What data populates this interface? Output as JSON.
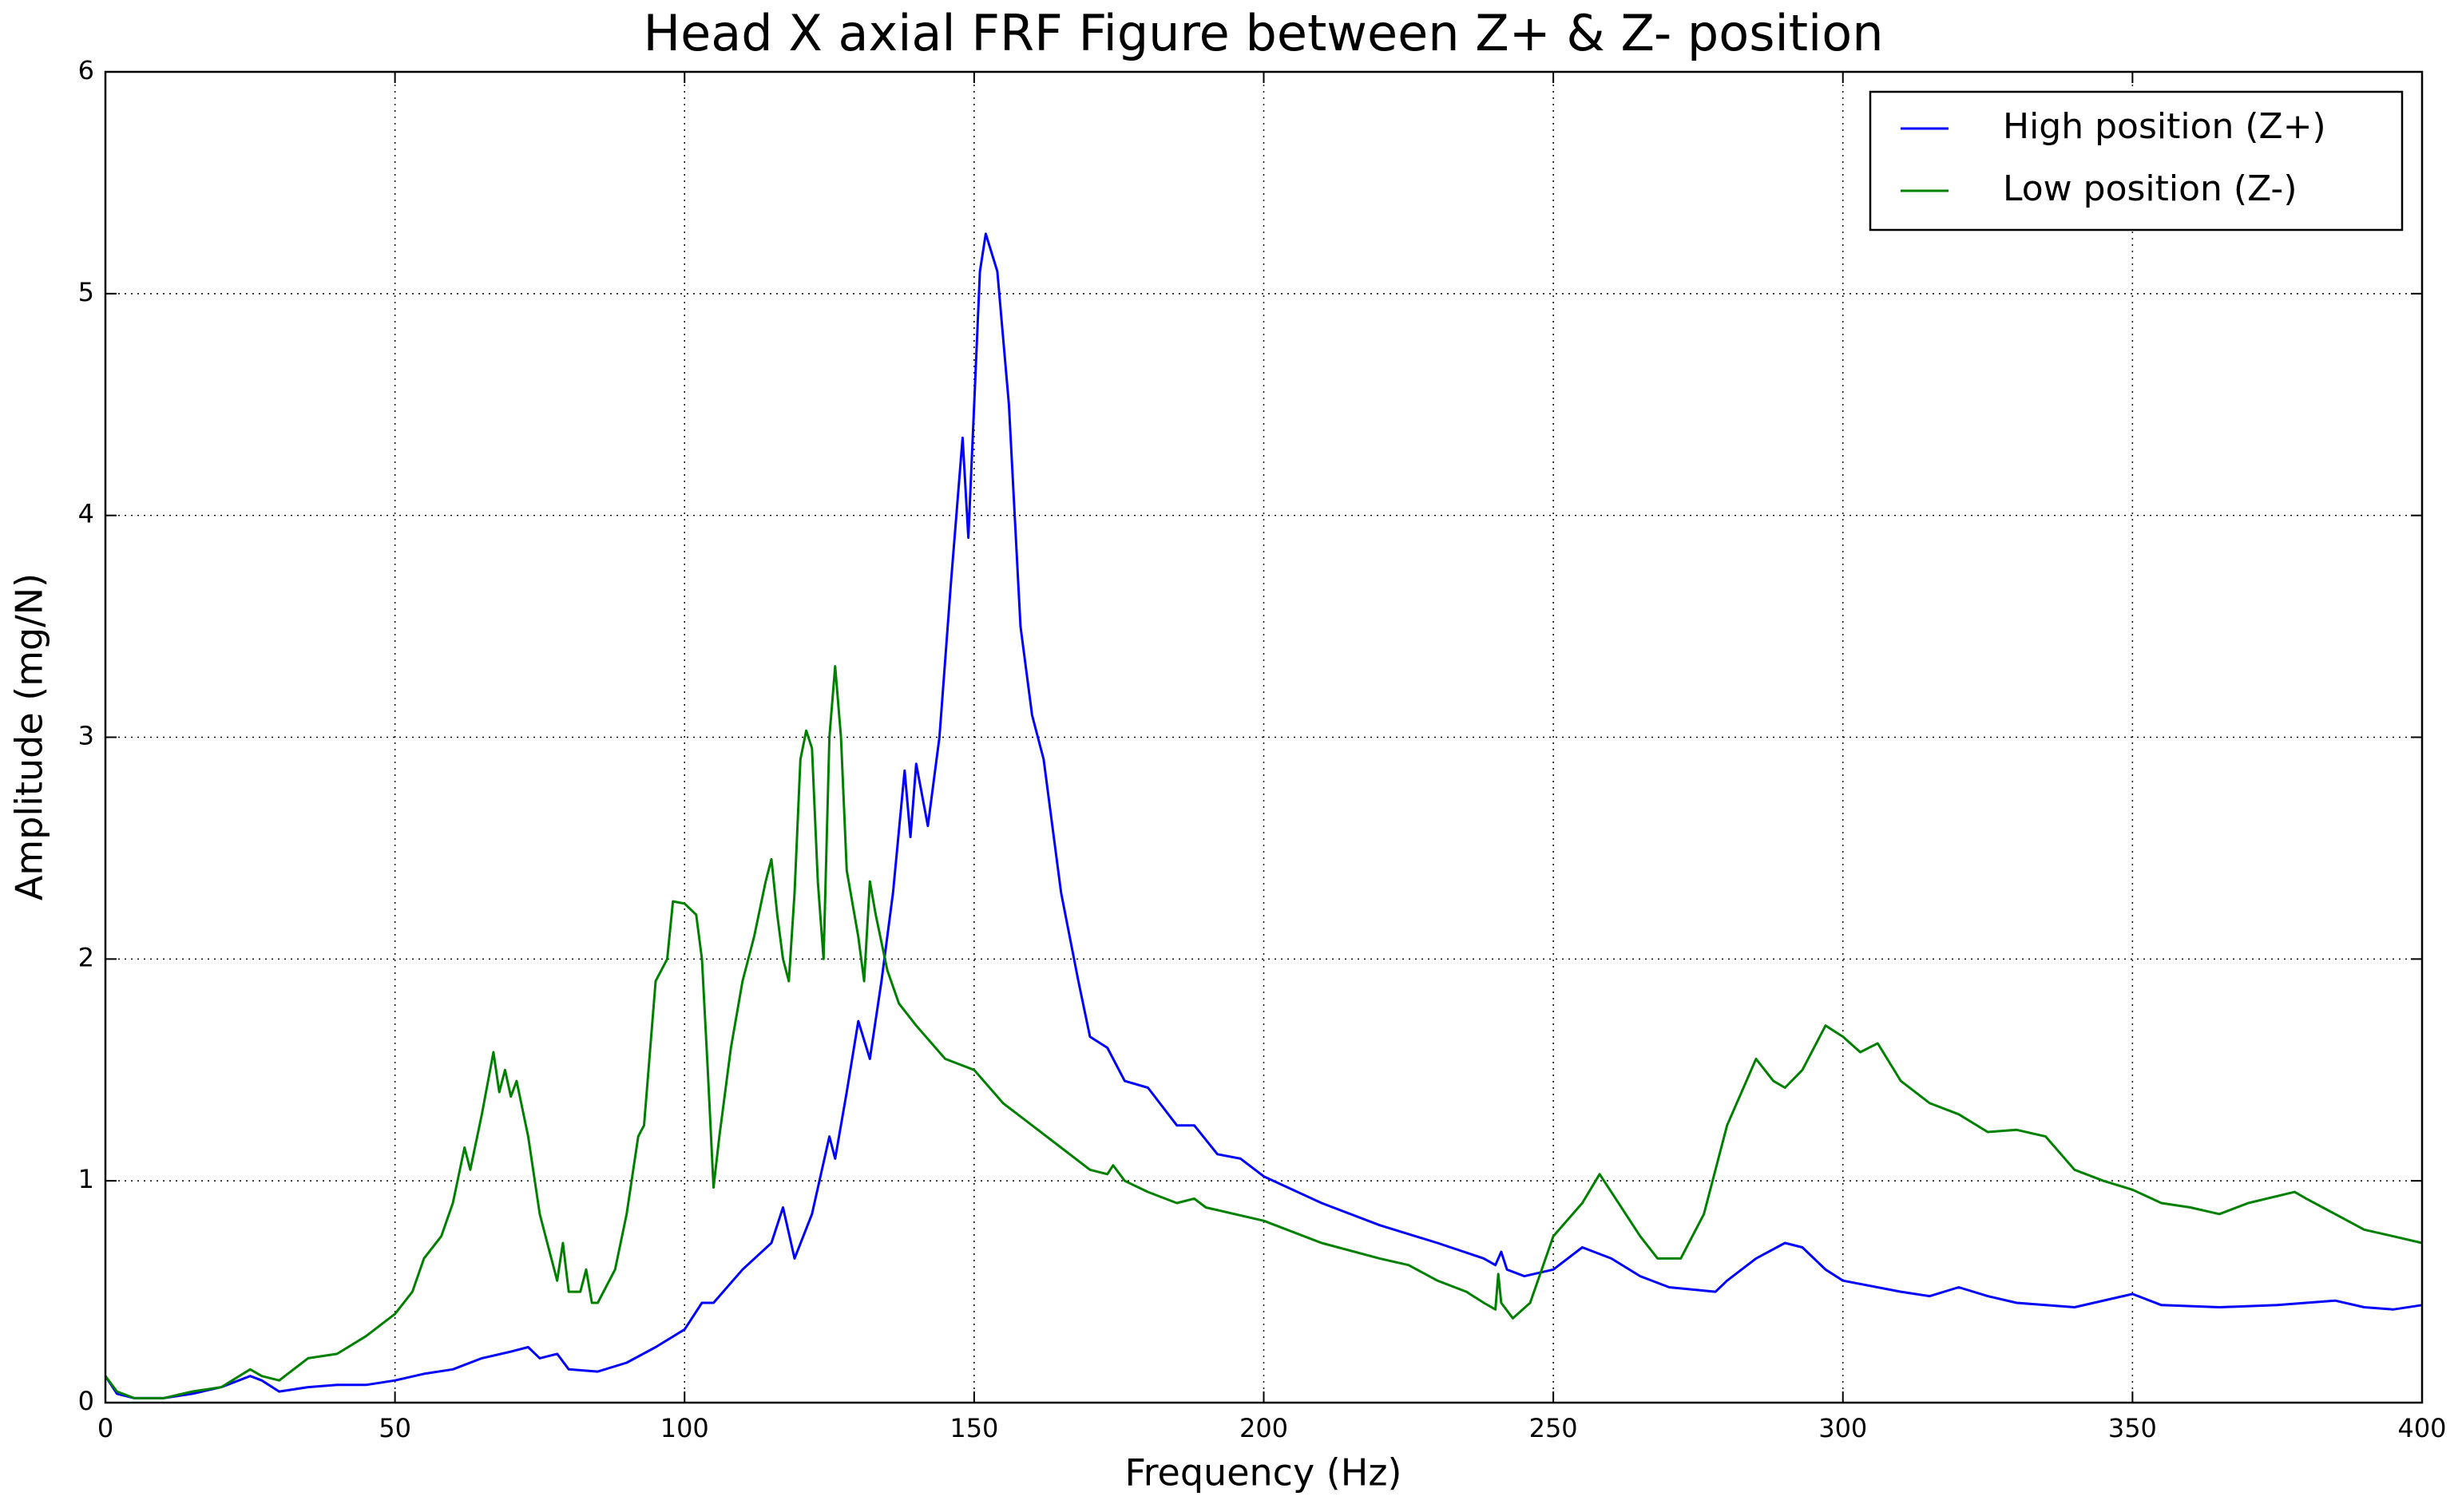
{
  "chart_data": {
    "type": "line",
    "title": "Head X axial FRF Figure between Z+ & Z- position",
    "xlabel": "Frequency (Hz)",
    "ylabel": "Amplitude (mg/N)",
    "xlim": [
      0,
      400
    ],
    "ylim": [
      0,
      6
    ],
    "xticks": [
      0,
      50,
      100,
      150,
      200,
      250,
      300,
      350,
      400
    ],
    "yticks": [
      0,
      1,
      2,
      3,
      4,
      5,
      6
    ],
    "grid": true,
    "legend": "upper right",
    "series": [
      {
        "name": "High position (Z+)",
        "color": "#0000ff",
        "x": [
          0,
          2,
          5,
          10,
          15,
          20,
          25,
          27,
          30,
          35,
          40,
          45,
          50,
          55,
          60,
          65,
          70,
          73,
          75,
          78,
          80,
          85,
          90,
          95,
          100,
          103,
          105,
          110,
          115,
          117,
          119,
          122,
          125,
          126,
          128,
          130,
          132,
          134,
          136,
          138,
          139,
          140,
          142,
          144,
          146,
          148,
          149,
          150,
          151,
          152,
          154,
          156,
          158,
          160,
          162,
          165,
          168,
          170,
          173,
          176,
          180,
          185,
          188,
          192,
          196,
          200,
          210,
          220,
          230,
          238,
          240,
          241,
          242,
          245,
          250,
          255,
          260,
          265,
          270,
          278,
          280,
          285,
          290,
          293,
          297,
          300,
          310,
          315,
          320,
          325,
          330,
          340,
          350,
          355,
          365,
          375,
          385,
          390,
          395,
          400
        ],
        "values": [
          0.12,
          0.04,
          0.02,
          0.02,
          0.04,
          0.07,
          0.12,
          0.1,
          0.05,
          0.07,
          0.08,
          0.08,
          0.1,
          0.13,
          0.15,
          0.2,
          0.23,
          0.25,
          0.2,
          0.22,
          0.15,
          0.14,
          0.18,
          0.25,
          0.33,
          0.45,
          0.45,
          0.6,
          0.72,
          0.88,
          0.65,
          0.85,
          1.2,
          1.1,
          1.4,
          1.72,
          1.55,
          1.9,
          2.3,
          2.85,
          2.55,
          2.88,
          2.6,
          3.0,
          3.7,
          4.35,
          3.9,
          4.5,
          5.1,
          5.27,
          5.1,
          4.5,
          3.5,
          3.1,
          2.9,
          2.3,
          1.9,
          1.65,
          1.6,
          1.45,
          1.42,
          1.25,
          1.25,
          1.12,
          1.1,
          1.02,
          0.9,
          0.8,
          0.72,
          0.65,
          0.62,
          0.68,
          0.6,
          0.57,
          0.6,
          0.7,
          0.65,
          0.57,
          0.52,
          0.5,
          0.55,
          0.65,
          0.72,
          0.7,
          0.6,
          0.55,
          0.5,
          0.48,
          0.52,
          0.48,
          0.45,
          0.43,
          0.49,
          0.44,
          0.43,
          0.44,
          0.46,
          0.43,
          0.42,
          0.44
        ]
      },
      {
        "name": "Low position (Z-)",
        "color": "#008000",
        "x": [
          0,
          2,
          5,
          10,
          15,
          20,
          25,
          27,
          30,
          35,
          40,
          45,
          50,
          53,
          55,
          58,
          60,
          62,
          63,
          65,
          67,
          68,
          69,
          70,
          71,
          73,
          75,
          77,
          78,
          79,
          80,
          82,
          83,
          84,
          85,
          88,
          90,
          92,
          93,
          95,
          97,
          98,
          100,
          102,
          103,
          104,
          105,
          106,
          108,
          110,
          112,
          114,
          115,
          116,
          117,
          118,
          119,
          120,
          121,
          122,
          123,
          124,
          125,
          126,
          127,
          128,
          130,
          131,
          132,
          133,
          135,
          137,
          140,
          145,
          150,
          155,
          160,
          165,
          170,
          173,
          174,
          176,
          180,
          185,
          188,
          190,
          200,
          210,
          220,
          225,
          230,
          235,
          238,
          240,
          240.5,
          241,
          243,
          246,
          250,
          255,
          258,
          260,
          265,
          268,
          272,
          276,
          280,
          285,
          288,
          290,
          293,
          297,
          300,
          303,
          306,
          310,
          315,
          320,
          325,
          330,
          335,
          340,
          345,
          350,
          355,
          360,
          365,
          370,
          378,
          380,
          385,
          390,
          395,
          400
        ],
        "values": [
          0.12,
          0.05,
          0.02,
          0.02,
          0.05,
          0.07,
          0.15,
          0.12,
          0.1,
          0.2,
          0.22,
          0.3,
          0.4,
          0.5,
          0.65,
          0.75,
          0.9,
          1.15,
          1.05,
          1.3,
          1.58,
          1.4,
          1.5,
          1.38,
          1.45,
          1.2,
          0.85,
          0.65,
          0.55,
          0.72,
          0.5,
          0.5,
          0.6,
          0.45,
          0.45,
          0.6,
          0.85,
          1.2,
          1.25,
          1.9,
          2.0,
          2.26,
          2.25,
          2.2,
          2.0,
          1.5,
          0.97,
          1.2,
          1.6,
          1.9,
          2.1,
          2.35,
          2.45,
          2.2,
          2.0,
          1.9,
          2.3,
          2.9,
          3.03,
          2.95,
          2.35,
          2.0,
          3.0,
          3.32,
          3.0,
          2.4,
          2.1,
          1.9,
          2.35,
          2.2,
          1.95,
          1.8,
          1.7,
          1.55,
          1.5,
          1.35,
          1.25,
          1.15,
          1.05,
          1.03,
          1.07,
          1.0,
          0.95,
          0.9,
          0.92,
          0.88,
          0.82,
          0.72,
          0.65,
          0.62,
          0.55,
          0.5,
          0.45,
          0.42,
          0.58,
          0.45,
          0.38,
          0.45,
          0.75,
          0.9,
          1.03,
          0.95,
          0.75,
          0.65,
          0.65,
          0.85,
          1.25,
          1.55,
          1.45,
          1.42,
          1.5,
          1.7,
          1.65,
          1.58,
          1.62,
          1.45,
          1.35,
          1.3,
          1.22,
          1.23,
          1.2,
          1.05,
          1.0,
          0.96,
          0.9,
          0.88,
          0.85,
          0.9,
          0.95,
          0.92,
          0.85,
          0.78,
          0.75,
          0.72
        ]
      }
    ]
  }
}
